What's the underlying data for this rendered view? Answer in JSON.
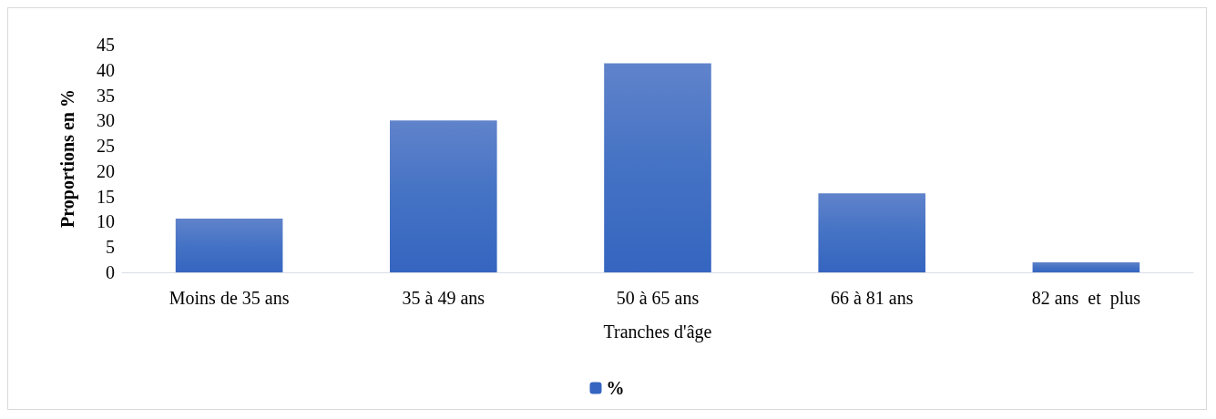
{
  "chart_data": {
    "type": "bar",
    "xlabel": "Tranches d'âge",
    "ylabel": "Proportions en %",
    "categories": [
      "Moins de 35 ans",
      "35 à 49 ans",
      "50 à 65 ans",
      "66 à 81 ans",
      "82 ans  et  plus"
    ],
    "series": [
      {
        "name": "%",
        "color": "#3565c0",
        "values": [
          10.6,
          30,
          41.3,
          15.6,
          2
        ]
      }
    ],
    "ylim": [
      0,
      45
    ],
    "yticks": [
      0,
      5,
      10,
      15,
      20,
      25,
      30,
      35,
      40,
      45
    ],
    "grid": false,
    "legend": "bottom"
  }
}
